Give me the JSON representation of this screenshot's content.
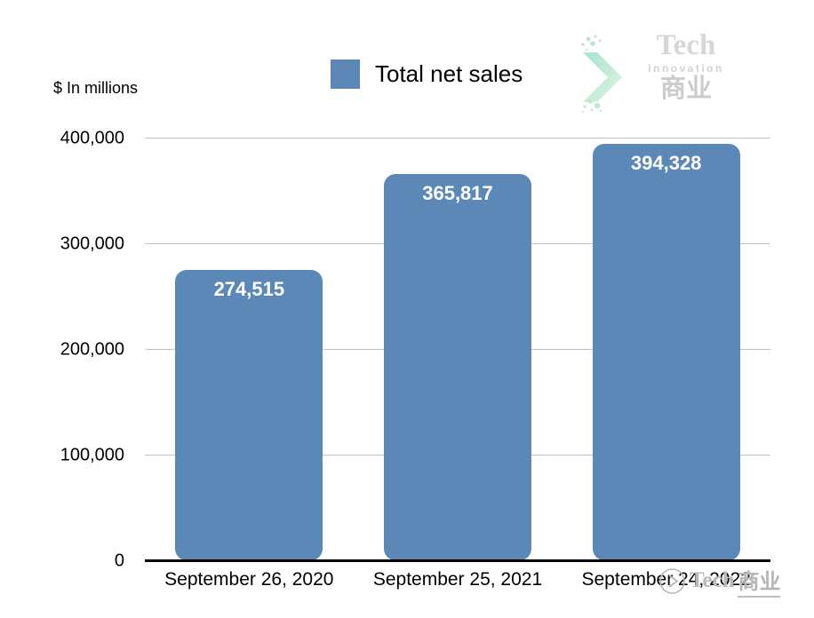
{
  "chart_data": {
    "type": "bar",
    "title": "",
    "units_note": "$ In millions",
    "legend": [
      "Total net sales"
    ],
    "legend_position": "top-center",
    "categories": [
      "September 26, 2020",
      "September 25, 2021",
      "September 24, 2022"
    ],
    "values": [
      274515,
      365817,
      394328
    ],
    "value_labels": [
      "274,515",
      "365,817",
      "394,328"
    ],
    "ylim": [
      0,
      400000
    ],
    "yticks": [
      0,
      100000,
      200000,
      300000,
      400000
    ],
    "ytick_labels": [
      "0",
      "100,000",
      "200,000",
      "300,000",
      "400,000"
    ],
    "grid": "horizontal",
    "bar_color": "#5c88b8",
    "value_label_color": "#ffffff",
    "gridline_color": "#c2c2c2",
    "axis_color": "#000000"
  },
  "branding": {
    "logo_top_right": {
      "line1": "Tech",
      "line2": "Innovation",
      "line3": "商业"
    },
    "watermark_bottom_right": {
      "text_en": "Tech",
      "text_zh": "商业"
    }
  }
}
